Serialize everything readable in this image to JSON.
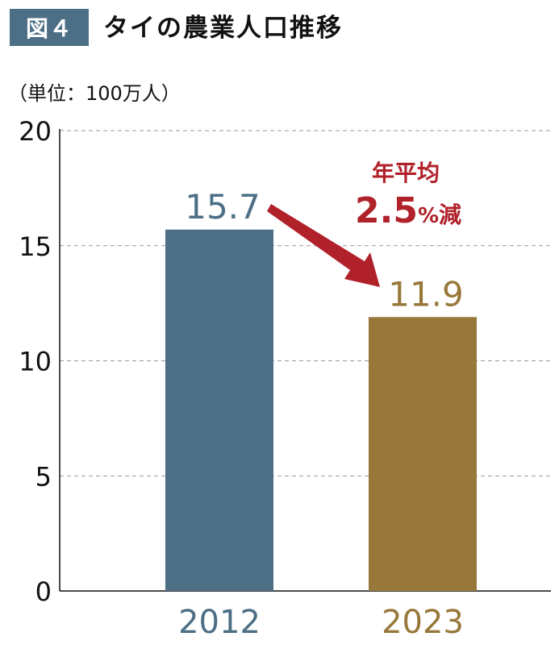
{
  "header": {
    "badge": "図４",
    "title": "タイの農業人口推移",
    "unit": "（単位：100万人）"
  },
  "colors": {
    "badge": "#4c6f86",
    "bar_2012": "#4c6f86",
    "bar_2023": "#98783a",
    "annotation": "#b0212a",
    "gridline": "#999999"
  },
  "annotation": {
    "line1": "年平均",
    "rate": "2.5",
    "pct": "%",
    "suffix": "減"
  },
  "chart_data": {
    "type": "bar",
    "categories": [
      "2012",
      "2023"
    ],
    "values": [
      15.7,
      11.9
    ],
    "data_labels": [
      "15.7",
      "11.9"
    ],
    "ylim": [
      0,
      20
    ],
    "yticks": [
      0,
      5,
      10,
      15,
      20
    ],
    "title": "タイの農業人口推移",
    "ylabel": "（単位：100万人）",
    "xlabel": "",
    "grid": "dashed horizontal"
  }
}
